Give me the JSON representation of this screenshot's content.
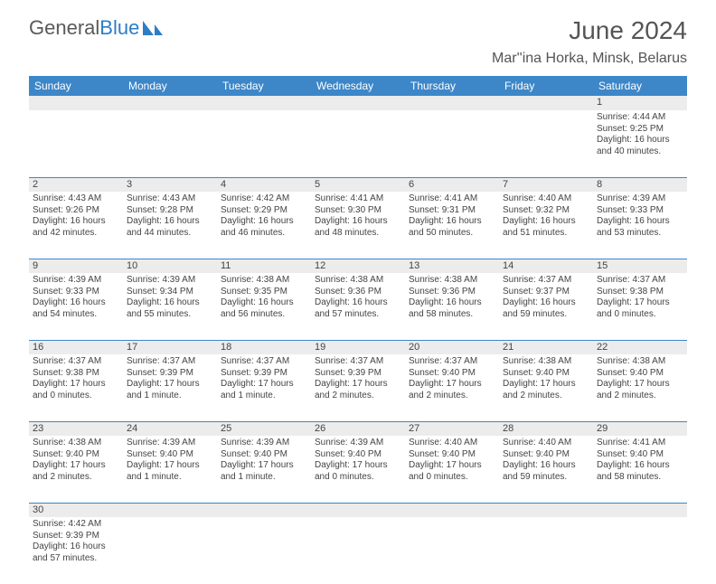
{
  "branding": {
    "name_a": "General",
    "name_b": "Blue"
  },
  "title": "June 2024",
  "location": "Mar''ina Horka, Minsk, Belarus",
  "colors": {
    "header_bg": "#3d87c9",
    "header_text": "#ffffff",
    "daynum_bg": "#ececec",
    "text": "#444444",
    "rule": "#3d87c9"
  },
  "weekdays": [
    "Sunday",
    "Monday",
    "Tuesday",
    "Wednesday",
    "Thursday",
    "Friday",
    "Saturday"
  ],
  "weeks": [
    [
      null,
      null,
      null,
      null,
      null,
      null,
      {
        "n": "1",
        "sr": "Sunrise: 4:44 AM",
        "ss": "Sunset: 9:25 PM",
        "dl": "Daylight: 16 hours and 40 minutes."
      }
    ],
    [
      {
        "n": "2",
        "sr": "Sunrise: 4:43 AM",
        "ss": "Sunset: 9:26 PM",
        "dl": "Daylight: 16 hours and 42 minutes."
      },
      {
        "n": "3",
        "sr": "Sunrise: 4:43 AM",
        "ss": "Sunset: 9:28 PM",
        "dl": "Daylight: 16 hours and 44 minutes."
      },
      {
        "n": "4",
        "sr": "Sunrise: 4:42 AM",
        "ss": "Sunset: 9:29 PM",
        "dl": "Daylight: 16 hours and 46 minutes."
      },
      {
        "n": "5",
        "sr": "Sunrise: 4:41 AM",
        "ss": "Sunset: 9:30 PM",
        "dl": "Daylight: 16 hours and 48 minutes."
      },
      {
        "n": "6",
        "sr": "Sunrise: 4:41 AM",
        "ss": "Sunset: 9:31 PM",
        "dl": "Daylight: 16 hours and 50 minutes."
      },
      {
        "n": "7",
        "sr": "Sunrise: 4:40 AM",
        "ss": "Sunset: 9:32 PM",
        "dl": "Daylight: 16 hours and 51 minutes."
      },
      {
        "n": "8",
        "sr": "Sunrise: 4:39 AM",
        "ss": "Sunset: 9:33 PM",
        "dl": "Daylight: 16 hours and 53 minutes."
      }
    ],
    [
      {
        "n": "9",
        "sr": "Sunrise: 4:39 AM",
        "ss": "Sunset: 9:33 PM",
        "dl": "Daylight: 16 hours and 54 minutes."
      },
      {
        "n": "10",
        "sr": "Sunrise: 4:39 AM",
        "ss": "Sunset: 9:34 PM",
        "dl": "Daylight: 16 hours and 55 minutes."
      },
      {
        "n": "11",
        "sr": "Sunrise: 4:38 AM",
        "ss": "Sunset: 9:35 PM",
        "dl": "Daylight: 16 hours and 56 minutes."
      },
      {
        "n": "12",
        "sr": "Sunrise: 4:38 AM",
        "ss": "Sunset: 9:36 PM",
        "dl": "Daylight: 16 hours and 57 minutes."
      },
      {
        "n": "13",
        "sr": "Sunrise: 4:38 AM",
        "ss": "Sunset: 9:36 PM",
        "dl": "Daylight: 16 hours and 58 minutes."
      },
      {
        "n": "14",
        "sr": "Sunrise: 4:37 AM",
        "ss": "Sunset: 9:37 PM",
        "dl": "Daylight: 16 hours and 59 minutes."
      },
      {
        "n": "15",
        "sr": "Sunrise: 4:37 AM",
        "ss": "Sunset: 9:38 PM",
        "dl": "Daylight: 17 hours and 0 minutes."
      }
    ],
    [
      {
        "n": "16",
        "sr": "Sunrise: 4:37 AM",
        "ss": "Sunset: 9:38 PM",
        "dl": "Daylight: 17 hours and 0 minutes."
      },
      {
        "n": "17",
        "sr": "Sunrise: 4:37 AM",
        "ss": "Sunset: 9:39 PM",
        "dl": "Daylight: 17 hours and 1 minute."
      },
      {
        "n": "18",
        "sr": "Sunrise: 4:37 AM",
        "ss": "Sunset: 9:39 PM",
        "dl": "Daylight: 17 hours and 1 minute."
      },
      {
        "n": "19",
        "sr": "Sunrise: 4:37 AM",
        "ss": "Sunset: 9:39 PM",
        "dl": "Daylight: 17 hours and 2 minutes."
      },
      {
        "n": "20",
        "sr": "Sunrise: 4:37 AM",
        "ss": "Sunset: 9:40 PM",
        "dl": "Daylight: 17 hours and 2 minutes."
      },
      {
        "n": "21",
        "sr": "Sunrise: 4:38 AM",
        "ss": "Sunset: 9:40 PM",
        "dl": "Daylight: 17 hours and 2 minutes."
      },
      {
        "n": "22",
        "sr": "Sunrise: 4:38 AM",
        "ss": "Sunset: 9:40 PM",
        "dl": "Daylight: 17 hours and 2 minutes."
      }
    ],
    [
      {
        "n": "23",
        "sr": "Sunrise: 4:38 AM",
        "ss": "Sunset: 9:40 PM",
        "dl": "Daylight: 17 hours and 2 minutes."
      },
      {
        "n": "24",
        "sr": "Sunrise: 4:39 AM",
        "ss": "Sunset: 9:40 PM",
        "dl": "Daylight: 17 hours and 1 minute."
      },
      {
        "n": "25",
        "sr": "Sunrise: 4:39 AM",
        "ss": "Sunset: 9:40 PM",
        "dl": "Daylight: 17 hours and 1 minute."
      },
      {
        "n": "26",
        "sr": "Sunrise: 4:39 AM",
        "ss": "Sunset: 9:40 PM",
        "dl": "Daylight: 17 hours and 0 minutes."
      },
      {
        "n": "27",
        "sr": "Sunrise: 4:40 AM",
        "ss": "Sunset: 9:40 PM",
        "dl": "Daylight: 17 hours and 0 minutes."
      },
      {
        "n": "28",
        "sr": "Sunrise: 4:40 AM",
        "ss": "Sunset: 9:40 PM",
        "dl": "Daylight: 16 hours and 59 minutes."
      },
      {
        "n": "29",
        "sr": "Sunrise: 4:41 AM",
        "ss": "Sunset: 9:40 PM",
        "dl": "Daylight: 16 hours and 58 minutes."
      }
    ],
    [
      {
        "n": "30",
        "sr": "Sunrise: 4:42 AM",
        "ss": "Sunset: 9:39 PM",
        "dl": "Daylight: 16 hours and 57 minutes."
      },
      null,
      null,
      null,
      null,
      null,
      null
    ]
  ]
}
